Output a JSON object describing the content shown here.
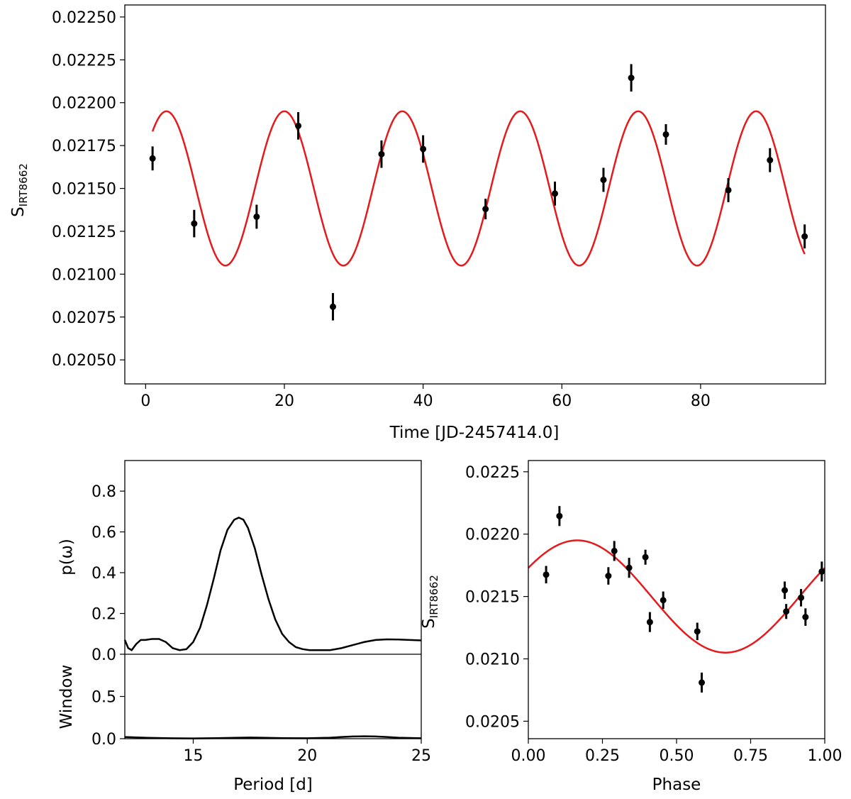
{
  "chart_data": [
    {
      "id": "timeseries",
      "type": "scatter",
      "xlabel": "Time [JD-2457414.0]",
      "ylabel": {
        "main": "S",
        "sub": "IRT8662"
      },
      "xlim": [
        -3,
        98
      ],
      "ylim": [
        0.02036,
        0.02257
      ],
      "xticks": [
        0,
        20,
        40,
        60,
        80
      ],
      "xtick_labels": [
        "0",
        "20",
        "40",
        "60",
        "80"
      ],
      "yticks": [
        0.0205,
        0.02075,
        0.021,
        0.02125,
        0.0215,
        0.02175,
        0.022,
        0.02225,
        0.0225
      ],
      "ytick_labels": [
        "0.02050",
        "0.02075",
        "0.02100",
        "0.02125",
        "0.02150",
        "0.02175",
        "0.02200",
        "0.02225",
        "0.02250"
      ],
      "points": [
        {
          "x": 1,
          "y": 0.021675,
          "err": 7e-05
        },
        {
          "x": 7,
          "y": 0.021295,
          "err": 8e-05
        },
        {
          "x": 16,
          "y": 0.021335,
          "err": 7e-05
        },
        {
          "x": 22,
          "y": 0.021865,
          "err": 8e-05
        },
        {
          "x": 27,
          "y": 0.02081,
          "err": 8e-05
        },
        {
          "x": 34,
          "y": 0.0217,
          "err": 8e-05
        },
        {
          "x": 40,
          "y": 0.02173,
          "err": 8e-05
        },
        {
          "x": 49,
          "y": 0.02138,
          "err": 6e-05
        },
        {
          "x": 59,
          "y": 0.02147,
          "err": 7e-05
        },
        {
          "x": 66,
          "y": 0.02155,
          "err": 7e-05
        },
        {
          "x": 70,
          "y": 0.022145,
          "err": 8e-05
        },
        {
          "x": 75,
          "y": 0.021815,
          "err": 6e-05
        },
        {
          "x": 84,
          "y": 0.02149,
          "err": 7e-05
        },
        {
          "x": 90,
          "y": 0.021665,
          "err": 7e-05
        },
        {
          "x": 95,
          "y": 0.02122,
          "err": 7e-05
        }
      ],
      "model": {
        "offset": 0.0215,
        "amplitude": 0.00045,
        "period": 17.0,
        "peak_x": 3.0,
        "x_range": [
          1,
          95
        ],
        "color": "#e41a1c"
      }
    },
    {
      "id": "periodogram",
      "type": "line",
      "xlabel": "Period [d]",
      "xlim": [
        12,
        25
      ],
      "xticks": [
        15,
        20,
        25
      ],
      "xtick_labels": [
        "15",
        "20",
        "25"
      ],
      "top": {
        "ylabel": "p(ω)",
        "ylim": [
          0,
          0.95
        ],
        "yticks": [
          0,
          0.2,
          0.4,
          0.6,
          0.8
        ],
        "ytick_labels": [
          "0.0",
          "0.2",
          "0.4",
          "0.6",
          "0.8"
        ],
        "x": [
          12.0,
          12.15,
          12.3,
          12.5,
          12.7,
          12.9,
          13.2,
          13.5,
          13.8,
          14.1,
          14.4,
          14.7,
          15.0,
          15.3,
          15.6,
          15.9,
          16.2,
          16.5,
          16.8,
          17.0,
          17.2,
          17.4,
          17.7,
          18.0,
          18.3,
          18.6,
          18.9,
          19.2,
          19.5,
          19.8,
          20.1,
          20.5,
          21.0,
          21.5,
          22.0,
          22.5,
          23.0,
          23.5,
          24.0,
          24.5,
          25.0
        ],
        "y": [
          0.07,
          0.03,
          0.02,
          0.05,
          0.07,
          0.07,
          0.075,
          0.075,
          0.06,
          0.03,
          0.02,
          0.025,
          0.06,
          0.13,
          0.24,
          0.37,
          0.51,
          0.61,
          0.66,
          0.67,
          0.66,
          0.62,
          0.52,
          0.39,
          0.27,
          0.17,
          0.1,
          0.06,
          0.035,
          0.025,
          0.02,
          0.02,
          0.02,
          0.03,
          0.045,
          0.06,
          0.07,
          0.073,
          0.072,
          0.07,
          0.068
        ]
      },
      "bottom": {
        "ylabel": "Window",
        "ylim": [
          0,
          1.0
        ],
        "yticks": [
          0,
          0.5
        ],
        "ytick_labels": [
          "0.0",
          "0.5"
        ],
        "x": [
          12,
          13,
          14,
          15,
          16,
          17,
          17.5,
          18,
          19,
          20,
          21,
          21.5,
          22,
          22.5,
          23,
          23.5,
          24,
          25
        ],
        "y": [
          0.02,
          0.01,
          0.005,
          0.003,
          0.006,
          0.012,
          0.014,
          0.012,
          0.006,
          0.005,
          0.012,
          0.02,
          0.026,
          0.028,
          0.026,
          0.02,
          0.012,
          0.005
        ]
      }
    },
    {
      "id": "phased",
      "type": "scatter",
      "xlabel": "Phase",
      "ylabel": {
        "main": "S",
        "sub": "IRT8662"
      },
      "xlim": [
        0,
        1
      ],
      "ylim": [
        0.02036,
        0.02259
      ],
      "xticks": [
        0,
        0.25,
        0.5,
        0.75,
        1.0
      ],
      "xtick_labels": [
        "0.00",
        "0.25",
        "0.50",
        "0.75",
        "1.00"
      ],
      "yticks": [
        0.0205,
        0.021,
        0.0215,
        0.022,
        0.0225
      ],
      "ytick_labels": [
        "0.0205",
        "0.0210",
        "0.0215",
        "0.0220",
        "0.0225"
      ],
      "points": [
        {
          "x": 0.06,
          "y": 0.021675,
          "err": 7e-05
        },
        {
          "x": 0.105,
          "y": 0.022145,
          "err": 8e-05
        },
        {
          "x": 0.27,
          "y": 0.021665,
          "err": 7e-05
        },
        {
          "x": 0.29,
          "y": 0.021865,
          "err": 8e-05
        },
        {
          "x": 0.34,
          "y": 0.02173,
          "err": 8e-05
        },
        {
          "x": 0.395,
          "y": 0.021815,
          "err": 6e-05
        },
        {
          "x": 0.41,
          "y": 0.021295,
          "err": 8e-05
        },
        {
          "x": 0.455,
          "y": 0.02147,
          "err": 7e-05
        },
        {
          "x": 0.57,
          "y": 0.02122,
          "err": 7e-05
        },
        {
          "x": 0.585,
          "y": 0.02081,
          "err": 8e-05
        },
        {
          "x": 0.865,
          "y": 0.02155,
          "err": 7e-05
        },
        {
          "x": 0.87,
          "y": 0.02138,
          "err": 6e-05
        },
        {
          "x": 0.92,
          "y": 0.02149,
          "err": 7e-05
        },
        {
          "x": 0.935,
          "y": 0.021335,
          "err": 7e-05
        },
        {
          "x": 0.99,
          "y": 0.0217,
          "err": 8e-05
        }
      ],
      "model": {
        "offset": 0.0215,
        "amplitude": 0.00045,
        "period": 1.0,
        "peak_x": 0.165,
        "x_range": [
          0,
          1
        ],
        "color": "#e41a1c"
      }
    }
  ]
}
